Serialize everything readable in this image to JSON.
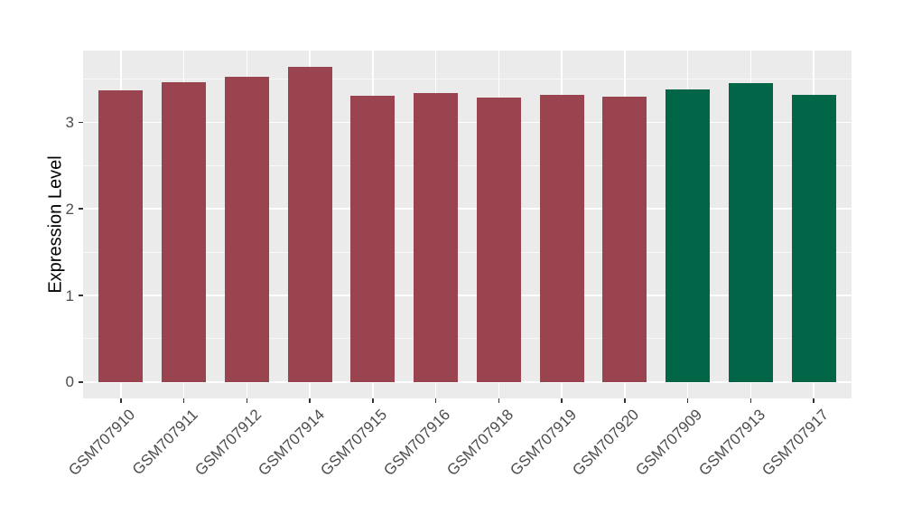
{
  "figure": {
    "background_color": "#ffffff"
  },
  "chart_data": {
    "type": "bar",
    "title": "",
    "xlabel": "",
    "ylabel": "Expression Level",
    "categories": [
      "GSM707910",
      "GSM707911",
      "GSM707912",
      "GSM707914",
      "GSM707915",
      "GSM707916",
      "GSM707918",
      "GSM707919",
      "GSM707920",
      "GSM707909",
      "GSM707913",
      "GSM707917"
    ],
    "values": [
      3.37,
      3.46,
      3.53,
      3.64,
      3.31,
      3.34,
      3.29,
      3.32,
      3.3,
      3.38,
      3.45,
      3.32
    ],
    "bar_colors": [
      "#9a4450",
      "#9a4450",
      "#9a4450",
      "#9a4450",
      "#9a4450",
      "#9a4450",
      "#9a4450",
      "#9a4450",
      "#9a4450",
      "#006647",
      "#006647",
      "#006647"
    ],
    "group_palette": {
      "group_1": "#9a4450",
      "group_2": "#006647"
    },
    "yticks": [
      0,
      1,
      2,
      3
    ],
    "yticks_minor": [
      0.5,
      1.5,
      2.5,
      3.5
    ],
    "ylim": [
      -0.19,
      3.83
    ],
    "bar_width_fraction": 0.7,
    "x_label_angle_deg": 45,
    "legend_position": "none",
    "grid": {
      "horizontal_major": true,
      "horizontal_minor": true,
      "vertical_major": true
    },
    "panel_background": "#ebebeb",
    "grid_color": "#ffffff",
    "axis_text_color": "#4d4d4d",
    "axis_title_color": "#000000",
    "tick_mark_color": "#333333"
  }
}
